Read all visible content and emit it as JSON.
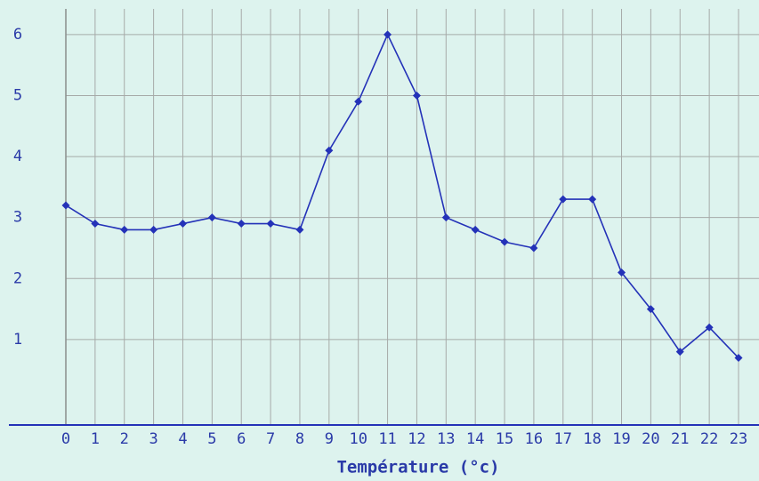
{
  "chart_data": {
    "type": "line",
    "x_label": "Température (°c)",
    "x": [
      0,
      1,
      2,
      3,
      4,
      5,
      6,
      7,
      8,
      9,
      10,
      11,
      12,
      13,
      14,
      15,
      16,
      17,
      18,
      19,
      20,
      21,
      22,
      23
    ],
    "series": [
      {
        "color": "#2432b8",
        "values": [
          3.2,
          2.9,
          2.8,
          2.8,
          2.9,
          3.0,
          2.9,
          2.9,
          2.8,
          4.1,
          4.9,
          6.0,
          5.0,
          3.0,
          2.8,
          2.6,
          2.5,
          3.3,
          3.3,
          2.1,
          1.5,
          0.8,
          1.2,
          0.7
        ]
      }
    ],
    "xlim": [
      0,
      23
    ],
    "xticks": [
      0,
      1,
      2,
      3,
      4,
      5,
      6,
      7,
      8,
      9,
      10,
      11,
      12,
      13,
      14,
      15,
      16,
      17,
      18,
      19,
      20,
      21,
      22,
      23
    ],
    "ylim": [
      -0.4,
      6.42
    ],
    "yticks": [
      1,
      2,
      3,
      4,
      5,
      6
    ],
    "grid": true
  }
}
